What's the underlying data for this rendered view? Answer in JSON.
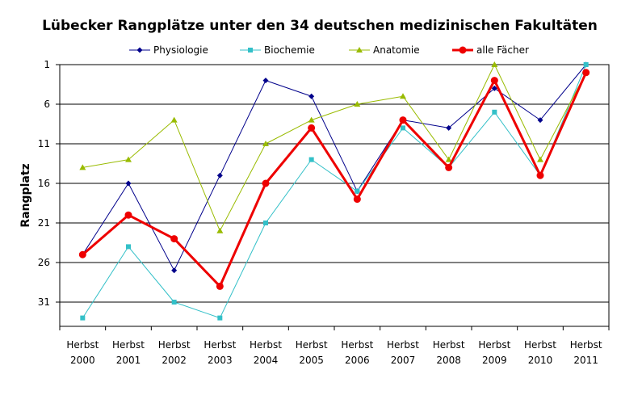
{
  "chart_data": {
    "type": "line",
    "title": "Lübecker Rangplätze unter den 34 deutschen medizinischen Fakultäten",
    "xlabel": "",
    "ylabel": "Rangplatz",
    "categories": [
      [
        "Herbst",
        "2000"
      ],
      [
        "Herbst",
        "2001"
      ],
      [
        "Herbst",
        "2002"
      ],
      [
        "Herbst",
        "2003"
      ],
      [
        "Herbst",
        "2004"
      ],
      [
        "Herbst",
        "2005"
      ],
      [
        "Herbst",
        "2006"
      ],
      [
        "Herbst",
        "2007"
      ],
      [
        "Herbst",
        "2008"
      ],
      [
        "Herbst",
        "2009"
      ],
      [
        "Herbst",
        "2010"
      ],
      [
        "Herbst",
        "2011"
      ]
    ],
    "y_ticks": [
      "1",
      "6",
      "11",
      "16",
      "21",
      "26",
      "31"
    ],
    "ylim": [
      1,
      34
    ],
    "y_inverted": true,
    "grid": true,
    "legend_position": "top",
    "series": [
      {
        "name": "Physiologie",
        "color": "#00008b",
        "marker": "diamond",
        "line_width": 1,
        "values": [
          25,
          16,
          27,
          15,
          3,
          5,
          17,
          8,
          9,
          4,
          8,
          1
        ]
      },
      {
        "name": "Biochemie",
        "color": "#33c0c8",
        "marker": "square",
        "line_width": 1,
        "values": [
          33,
          24,
          31,
          33,
          21,
          13,
          17,
          9,
          14,
          7,
          15,
          1
        ]
      },
      {
        "name": "Anatomie",
        "color": "#99bb00",
        "marker": "triangle",
        "line_width": 1,
        "values": [
          14,
          13,
          8,
          22,
          11,
          8,
          6,
          5,
          13,
          1,
          13,
          2
        ]
      },
      {
        "name": "alle Fächer",
        "color": "#ee0000",
        "marker": "circle",
        "line_width": 3,
        "values": [
          25,
          20,
          23,
          29,
          16,
          9,
          18,
          8,
          14,
          3,
          15,
          2
        ]
      }
    ]
  }
}
